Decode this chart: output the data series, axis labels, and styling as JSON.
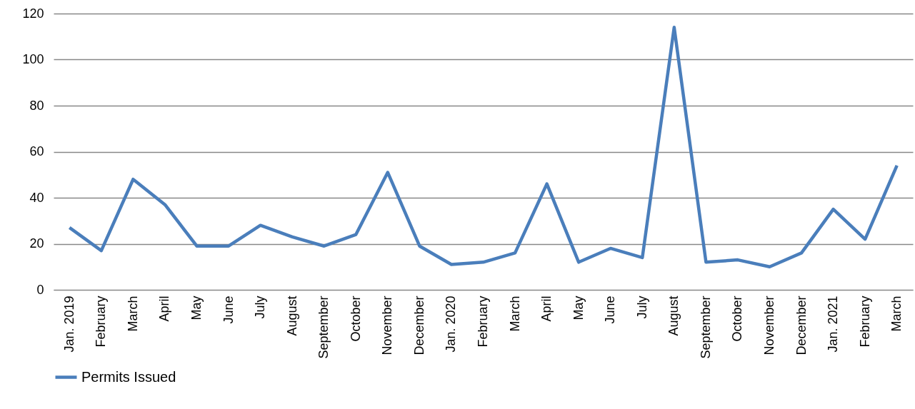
{
  "chart_data": {
    "type": "line",
    "categories": [
      "Jan. 2019",
      "February",
      "March",
      "April",
      "May",
      "June",
      "July",
      "August",
      "September",
      "October",
      "November",
      "December",
      "Jan. 2020",
      "February",
      "March",
      "April",
      "May",
      "June",
      "July",
      "August",
      "September",
      "October",
      "November",
      "December",
      "Jan. 2021",
      "February",
      "March"
    ],
    "series": [
      {
        "name": "Permits Issued",
        "color": "#4a7ebb",
        "values": [
          27,
          17,
          48,
          37,
          19,
          19,
          28,
          23,
          19,
          24,
          51,
          19,
          11,
          12,
          16,
          46,
          12,
          18,
          14,
          114,
          12,
          13,
          10,
          16,
          35,
          22,
          54
        ]
      }
    ],
    "ylim": [
      0,
      120
    ],
    "yticks": [
      0,
      20,
      40,
      60,
      80,
      100,
      120
    ],
    "grid": "y",
    "legend": "bottom",
    "marker": "none",
    "line_style": "solid"
  }
}
